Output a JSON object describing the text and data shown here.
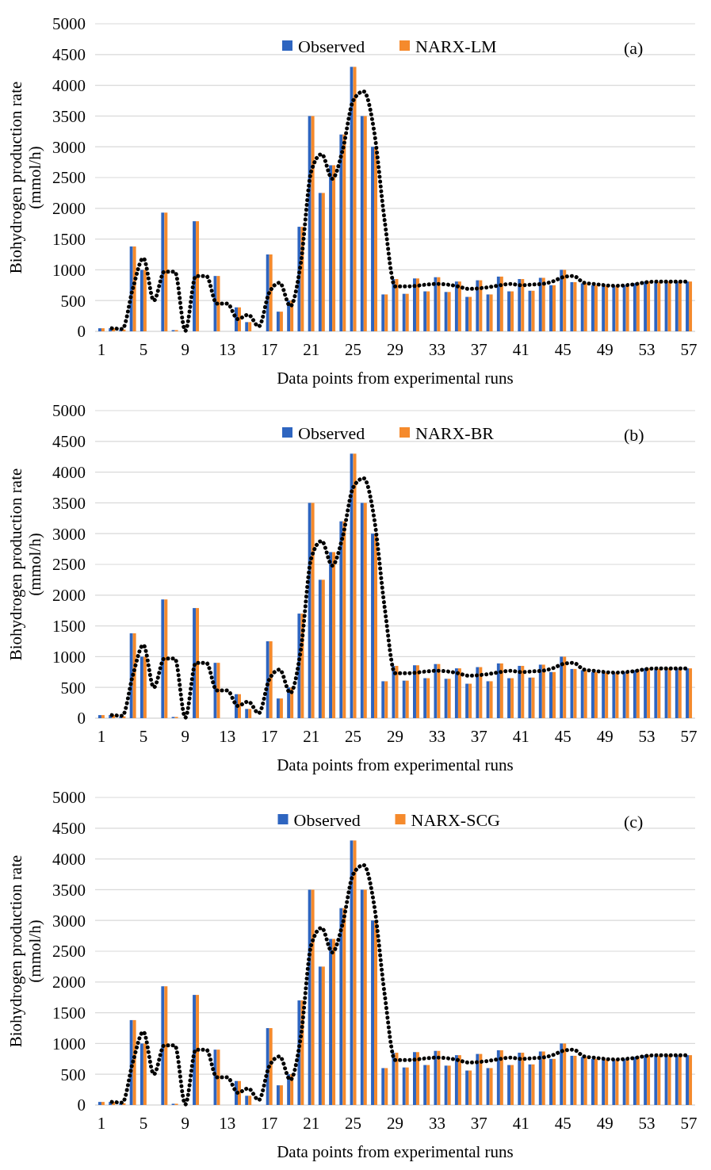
{
  "chart_data": [
    {
      "type": "bar",
      "categories": [
        "1",
        null,
        null,
        null,
        "5",
        null,
        null,
        null,
        "9",
        null,
        null,
        null,
        "13",
        null,
        null,
        null,
        "17",
        null,
        null,
        null,
        "21",
        null,
        null,
        null,
        "25",
        null,
        null,
        null,
        "29",
        null,
        null,
        null,
        "33",
        null,
        null,
        null,
        "37",
        null,
        null,
        null,
        "41",
        null,
        null,
        null,
        "45",
        null,
        null,
        null,
        "49",
        null,
        null,
        null,
        "53",
        null,
        null,
        null,
        "57"
      ],
      "xlabel": "Data points from experimental runs",
      "ylabel": "Biohydrogen production rate (mmol/h)",
      "ylim": [
        0,
        5000
      ],
      "yticks": [
        0,
        500,
        1000,
        1500,
        2000,
        2500,
        3000,
        3500,
        4000,
        4500,
        5000
      ],
      "grid": "y",
      "legend": "top",
      "annotations": [
        "(a)"
      ],
      "series": [
        {
          "name": "Observed",
          "color": "#2e65c0",
          "values": [
            50,
            50,
            30,
            1380,
            1000,
            0,
            1930,
            20,
            0,
            1790,
            0,
            900,
            0,
            390,
            150,
            0,
            1250,
            320,
            500,
            1700,
            3500,
            2250,
            2700,
            3200,
            4300,
            3500,
            3000,
            600,
            850,
            610,
            860,
            650,
            880,
            640,
            810,
            560,
            830,
            600,
            890,
            650,
            850,
            660,
            870,
            750,
            1000,
            800,
            780,
            750,
            740,
            740,
            750,
            780,
            810,
            800,
            810,
            810,
            810
          ]
        },
        {
          "name": "NARX-LM",
          "color": "#f58a2c",
          "values": [
            50,
            50,
            30,
            1380,
            1000,
            0,
            1930,
            20,
            0,
            1790,
            0,
            900,
            0,
            390,
            150,
            0,
            1250,
            320,
            500,
            1700,
            3500,
            2250,
            2700,
            3200,
            4300,
            3500,
            3000,
            600,
            850,
            610,
            860,
            650,
            880,
            640,
            810,
            560,
            830,
            600,
            890,
            650,
            850,
            660,
            870,
            750,
            1000,
            800,
            780,
            750,
            740,
            740,
            750,
            780,
            810,
            800,
            810,
            810,
            810
          ]
        },
        {
          "type": "line",
          "color": "#000000",
          "line_style": "dotted",
          "values": [
            null,
            50,
            40,
            700,
            1190,
            500,
            970,
            970,
            10,
            900,
            900,
            450,
            450,
            200,
            270,
            80,
            630,
            790,
            410,
            1100,
            2600,
            2880,
            2480,
            2950,
            3750,
            3900,
            3250,
            1800,
            730,
            730,
            740,
            760,
            770,
            760,
            730,
            690,
            700,
            720,
            750,
            770,
            750,
            760,
            770,
            810,
            880,
            900,
            790,
            770,
            750,
            740,
            750,
            770,
            800,
            810,
            810,
            810,
            810
          ]
        }
      ]
    },
    {
      "type": "bar",
      "categories": [
        "1",
        null,
        null,
        null,
        "5",
        null,
        null,
        null,
        "9",
        null,
        null,
        null,
        "13",
        null,
        null,
        null,
        "17",
        null,
        null,
        null,
        "21",
        null,
        null,
        null,
        "25",
        null,
        null,
        null,
        "29",
        null,
        null,
        null,
        "33",
        null,
        null,
        null,
        "37",
        null,
        null,
        null,
        "41",
        null,
        null,
        null,
        "45",
        null,
        null,
        null,
        "49",
        null,
        null,
        null,
        "53",
        null,
        null,
        null,
        "57"
      ],
      "xlabel": "Data points from experimental runs",
      "ylabel": "Biohydrogen production rate (mmol/h)",
      "ylim": [
        0,
        5000
      ],
      "yticks": [
        0,
        500,
        1000,
        1500,
        2000,
        2500,
        3000,
        3500,
        4000,
        4500,
        5000
      ],
      "grid": "y",
      "legend": "top",
      "annotations": [
        "(b)"
      ],
      "series": [
        {
          "name": "Observed",
          "color": "#2e65c0",
          "values": [
            50,
            50,
            30,
            1380,
            1000,
            0,
            1930,
            20,
            0,
            1790,
            0,
            900,
            0,
            390,
            150,
            0,
            1250,
            320,
            500,
            1700,
            3500,
            2250,
            2700,
            3200,
            4300,
            3500,
            3000,
            600,
            850,
            610,
            860,
            650,
            880,
            640,
            810,
            560,
            830,
            600,
            890,
            650,
            850,
            660,
            870,
            750,
            1000,
            800,
            780,
            750,
            740,
            740,
            750,
            780,
            810,
            800,
            810,
            810,
            810
          ]
        },
        {
          "name": "NARX-BR",
          "color": "#f58a2c",
          "values": [
            50,
            50,
            30,
            1380,
            1000,
            0,
            1930,
            20,
            0,
            1790,
            0,
            900,
            0,
            390,
            150,
            0,
            1250,
            320,
            500,
            1700,
            3500,
            2250,
            2700,
            3200,
            4300,
            3500,
            3000,
            600,
            850,
            610,
            860,
            650,
            880,
            640,
            810,
            560,
            830,
            600,
            890,
            650,
            850,
            660,
            870,
            750,
            1000,
            800,
            780,
            750,
            740,
            740,
            750,
            780,
            810,
            800,
            810,
            810,
            810
          ]
        },
        {
          "type": "line",
          "color": "#000000",
          "line_style": "dotted",
          "values": [
            null,
            50,
            40,
            700,
            1190,
            500,
            970,
            970,
            10,
            900,
            900,
            450,
            450,
            200,
            270,
            80,
            630,
            790,
            410,
            1100,
            2600,
            2880,
            2480,
            2950,
            3750,
            3900,
            3250,
            1800,
            730,
            730,
            740,
            760,
            770,
            760,
            730,
            690,
            700,
            720,
            750,
            770,
            750,
            760,
            770,
            810,
            880,
            900,
            790,
            770,
            750,
            740,
            750,
            770,
            800,
            810,
            810,
            810,
            810
          ]
        }
      ]
    },
    {
      "type": "bar",
      "categories": [
        "1",
        null,
        null,
        null,
        "5",
        null,
        null,
        null,
        "9",
        null,
        null,
        null,
        "13",
        null,
        null,
        null,
        "17",
        null,
        null,
        null,
        "21",
        null,
        null,
        null,
        "25",
        null,
        null,
        null,
        "29",
        null,
        null,
        null,
        "33",
        null,
        null,
        null,
        "37",
        null,
        null,
        null,
        "41",
        null,
        null,
        null,
        "45",
        null,
        null,
        null,
        "49",
        null,
        null,
        null,
        "53",
        null,
        null,
        null,
        "57"
      ],
      "xlabel": "Data points from experimental runs",
      "ylabel": "Biohydrogen production rate (mmol/h)",
      "ylim": [
        0,
        5000
      ],
      "yticks": [
        0,
        500,
        1000,
        1500,
        2000,
        2500,
        3000,
        3500,
        4000,
        4500,
        5000
      ],
      "grid": "y",
      "legend": "top",
      "annotations": [
        "(c)"
      ],
      "series": [
        {
          "name": "Observed",
          "color": "#2e65c0",
          "values": [
            50,
            50,
            30,
            1380,
            1000,
            0,
            1930,
            20,
            0,
            1790,
            0,
            900,
            0,
            390,
            150,
            0,
            1250,
            320,
            500,
            1700,
            3500,
            2250,
            2700,
            3200,
            4300,
            3500,
            3000,
            600,
            850,
            610,
            860,
            650,
            880,
            640,
            810,
            560,
            830,
            600,
            890,
            650,
            850,
            660,
            870,
            750,
            1000,
            800,
            780,
            750,
            740,
            740,
            750,
            780,
            810,
            800,
            810,
            810,
            810
          ]
        },
        {
          "name": "NARX-SCG",
          "color": "#f58a2c",
          "values": [
            50,
            50,
            30,
            1380,
            1000,
            0,
            1930,
            20,
            0,
            1790,
            0,
            900,
            0,
            390,
            150,
            0,
            1250,
            320,
            500,
            1700,
            3500,
            2250,
            2700,
            3200,
            4300,
            3500,
            3000,
            600,
            850,
            610,
            860,
            650,
            880,
            640,
            810,
            560,
            830,
            600,
            890,
            650,
            850,
            660,
            870,
            750,
            1000,
            800,
            780,
            750,
            740,
            740,
            750,
            780,
            810,
            800,
            810,
            810,
            810
          ]
        },
        {
          "type": "line",
          "color": "#000000",
          "line_style": "dotted",
          "values": [
            null,
            50,
            40,
            700,
            1190,
            500,
            970,
            970,
            10,
            900,
            900,
            450,
            450,
            200,
            270,
            80,
            630,
            790,
            410,
            1100,
            2600,
            2880,
            2480,
            2950,
            3750,
            3900,
            3250,
            1800,
            730,
            730,
            740,
            760,
            770,
            760,
            730,
            690,
            700,
            720,
            750,
            770,
            750,
            760,
            770,
            810,
            880,
            900,
            790,
            770,
            750,
            740,
            750,
            770,
            800,
            810,
            810,
            810,
            810
          ]
        }
      ]
    }
  ]
}
